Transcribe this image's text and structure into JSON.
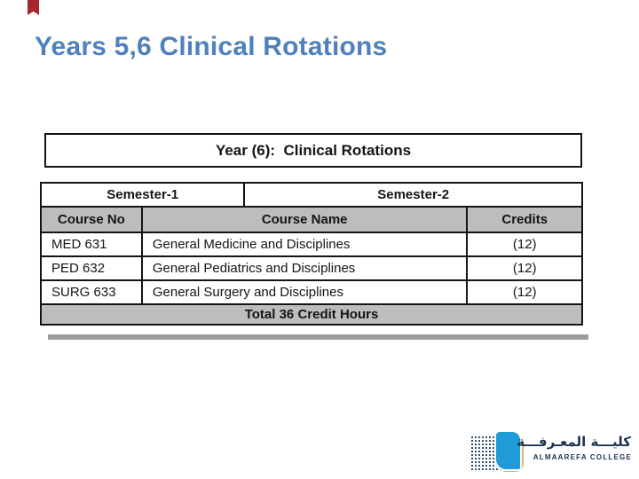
{
  "slide": {
    "title": "Years 5,6 Clinical Rotations",
    "title_color": "#4F81BD",
    "background_color": "#FFFFFF"
  },
  "bookmark_ribbon": {
    "color": "#A6262B"
  },
  "year_box": {
    "label": "Year (6):  Clinical Rotations"
  },
  "course_table": {
    "semester_headers": [
      "Semester-1",
      "Semester-2"
    ],
    "column_headers": [
      "Course No",
      "Course Name",
      "Credits"
    ],
    "rows": [
      {
        "course_no": "MED 631",
        "course_name": "General Medicine and Disciplines",
        "credits": "(12)"
      },
      {
        "course_no": "PED 632",
        "course_name": "General Pediatrics and Disciplines",
        "credits": "(12)"
      },
      {
        "course_no": "SURG 633",
        "course_name": "General Surgery and Disciplines",
        "credits": "(12)"
      }
    ],
    "footer": "Total 36 Credit Hours",
    "header_bg_color": "#BDBDBD",
    "border_color": "#141414"
  },
  "logo": {
    "arabic_name": "كليـــة المعـرفـــة",
    "latin_name": "ALMAAREFA COLLEGE",
    "book_color": "#1F9CD7",
    "page_accent_color": "#C9BA7E",
    "dots_color": "#30536F",
    "text_color": "#1B3350"
  }
}
